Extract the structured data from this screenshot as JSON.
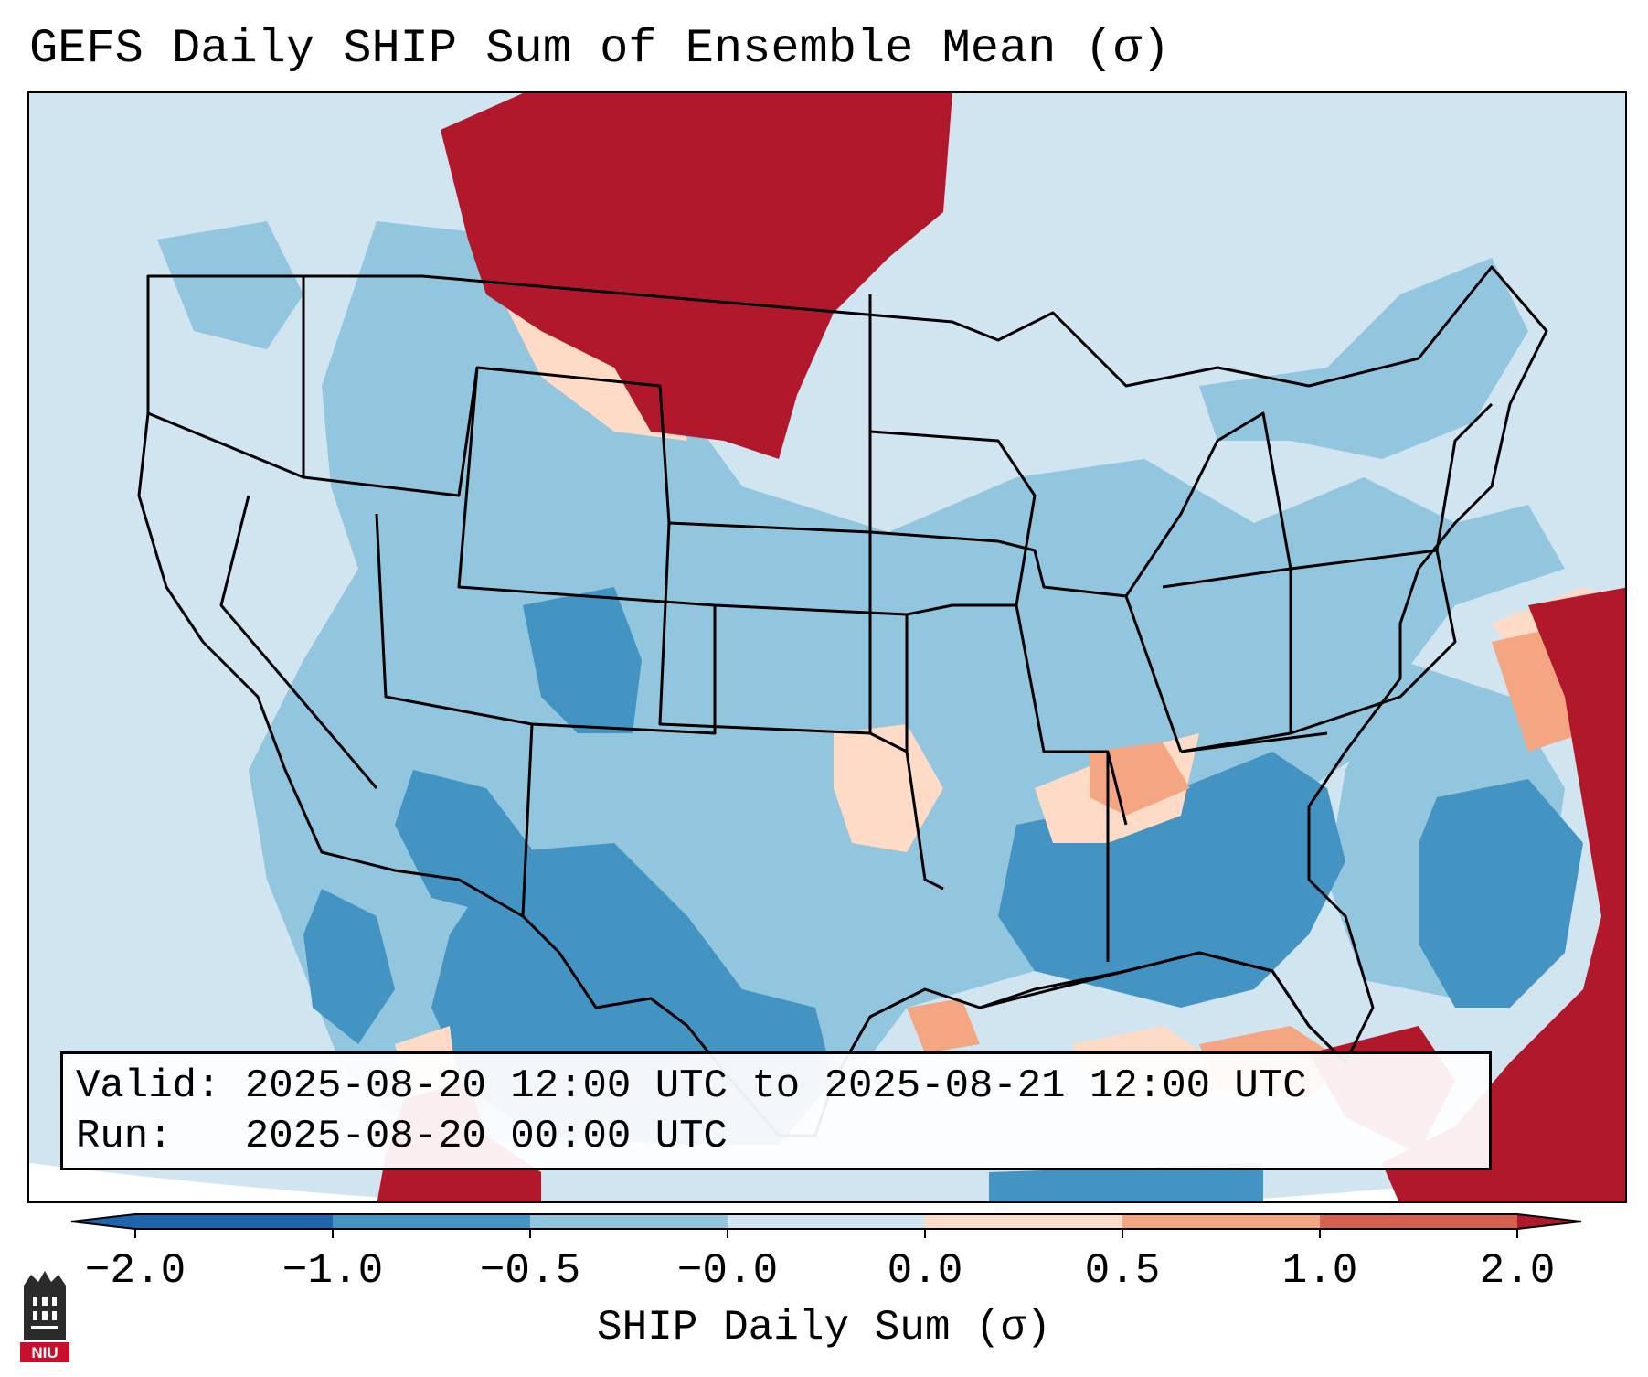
{
  "title": "GEFS Daily SHIP Sum of Ensemble Mean (σ)",
  "info": {
    "valid_label": "Valid:",
    "valid_value": "2025-08-20 12:00 UTC to 2025-08-21 12:00 UTC",
    "run_label": "Run:",
    "run_value": "2025-08-20 00:00 UTC"
  },
  "colorbar": {
    "label": "SHIP Daily Sum (σ)",
    "ticks": [
      "−2.0",
      "−1.0",
      "−0.5",
      "−0.0",
      "0.0",
      "0.5",
      "1.0",
      "2.0"
    ],
    "colors": [
      "#1f65ad",
      "#4393c3",
      "#92c5de",
      "#d1e5f0",
      "#fddbc7",
      "#f4a582",
      "#d6604d",
      "#b2182b"
    ],
    "extend": "both"
  },
  "logo": {
    "text": "NIU"
  }
}
